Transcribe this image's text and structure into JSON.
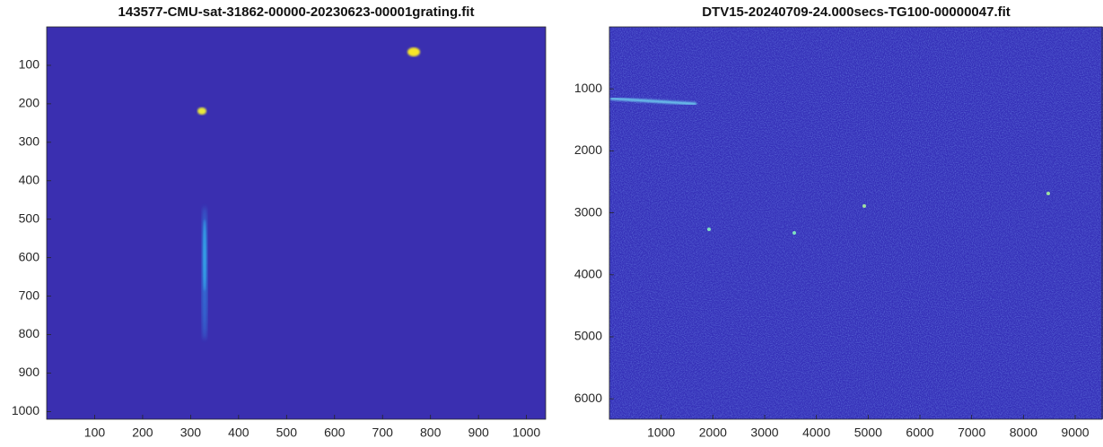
{
  "chart_data": [
    {
      "type": "image",
      "title": "143577-CMU-sat-31862-00000-20230623-00001grating.fit",
      "xlim": [
        0,
        1040
      ],
      "ylim": [
        1020,
        0
      ],
      "xticks": [
        100,
        200,
        300,
        400,
        500,
        600,
        700,
        800,
        900,
        1000
      ],
      "yticks": [
        100,
        200,
        300,
        400,
        500,
        600,
        700,
        800,
        900,
        1000
      ]
    },
    {
      "type": "image",
      "title": "DTV15-20240709-24.000secs-TG100-00000047.fit",
      "xlim": [
        0,
        9520
      ],
      "ylim": [
        6330,
        0
      ],
      "xticks": [
        1000,
        2000,
        3000,
        4000,
        5000,
        6000,
        7000,
        8000,
        9000
      ],
      "yticks": [
        1000,
        2000,
        3000,
        4000,
        5000,
        6000
      ]
    }
  ]
}
